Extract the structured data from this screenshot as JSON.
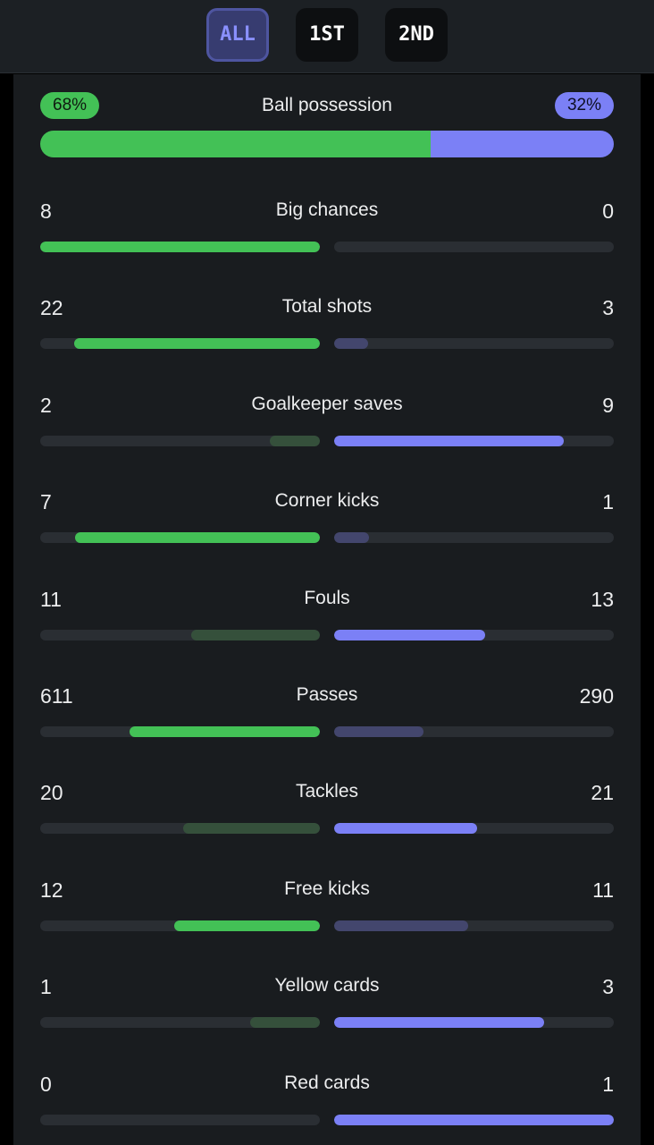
{
  "periods": [
    {
      "label": "ALL",
      "active": true
    },
    {
      "label": "1ST",
      "active": false
    },
    {
      "label": "2ND",
      "active": false
    }
  ],
  "possession": {
    "label": "Ball possession",
    "home_text": "68%",
    "away_text": "32%",
    "home_share": 0.68,
    "away_share": 0.32
  },
  "colors": {
    "home": "#43c156",
    "away": "#7b80f6",
    "home_muted": "#35503b",
    "away_muted": "#43466d",
    "track": "#2a2e33"
  },
  "stats": [
    {
      "label": "Big chances",
      "home": "8",
      "away": "0",
      "home_fill": 1.0,
      "away_fill": 0.0,
      "leader": "home"
    },
    {
      "label": "Total shots",
      "home": "22",
      "away": "3",
      "home_fill": 0.88,
      "away_fill": 0.12,
      "leader": "home"
    },
    {
      "label": "Goalkeeper saves",
      "home": "2",
      "away": "9",
      "home_fill": 0.18,
      "away_fill": 0.82,
      "leader": "away"
    },
    {
      "label": "Corner kicks",
      "home": "7",
      "away": "1",
      "home_fill": 0.875,
      "away_fill": 0.125,
      "leader": "home"
    },
    {
      "label": "Fouls",
      "home": "11",
      "away": "13",
      "home_fill": 0.46,
      "away_fill": 0.54,
      "leader": "away"
    },
    {
      "label": "Passes",
      "home": "611",
      "away": "290",
      "home_fill": 0.68,
      "away_fill": 0.32,
      "leader": "home"
    },
    {
      "label": "Tackles",
      "home": "20",
      "away": "21",
      "home_fill": 0.49,
      "away_fill": 0.51,
      "leader": "away"
    },
    {
      "label": "Free kicks",
      "home": "12",
      "away": "11",
      "home_fill": 0.52,
      "away_fill": 0.48,
      "leader": "home"
    },
    {
      "label": "Yellow cards",
      "home": "1",
      "away": "3",
      "home_fill": 0.25,
      "away_fill": 0.75,
      "leader": "away"
    },
    {
      "label": "Red cards",
      "home": "0",
      "away": "1",
      "home_fill": 0.0,
      "away_fill": 1.0,
      "leader": "away"
    }
  ]
}
